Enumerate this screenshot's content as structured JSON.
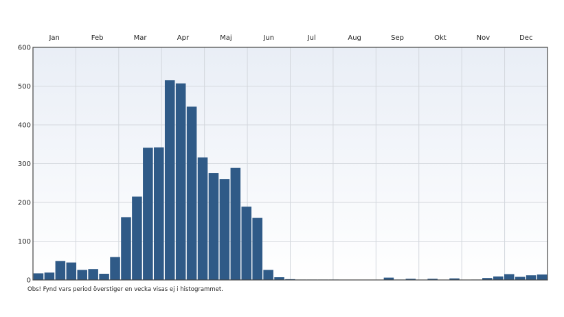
{
  "chart_data": {
    "type": "bar",
    "months": [
      "Jan",
      "Feb",
      "Mar",
      "Apr",
      "Maj",
      "Jun",
      "Jul",
      "Aug",
      "Sep",
      "Okt",
      "Nov",
      "Dec"
    ],
    "ylim": [
      0,
      600
    ],
    "yticks": [
      0,
      100,
      200,
      300,
      400,
      500,
      600
    ],
    "grid": true,
    "values": [
      17,
      19,
      49,
      45,
      26,
      28,
      16,
      59,
      162,
      215,
      341,
      342,
      515,
      507,
      447,
      316,
      276,
      260,
      289,
      189,
      160,
      26,
      7,
      2,
      1,
      1,
      1,
      1,
      0,
      0,
      0,
      0,
      6,
      1,
      3,
      0,
      3,
      0,
      4,
      0,
      1,
      5,
      9,
      15,
      8,
      12,
      14
    ],
    "colors": {
      "bar": "#2f5a87",
      "plot_bg_top": "#eef2f8",
      "plot_bg_bottom": "#ffffff",
      "grid": "#d3d7dd",
      "frame": "#444444"
    }
  },
  "footnote": "Obs! Fynd vars period överstiger en vecka visas ej i histogrammet."
}
